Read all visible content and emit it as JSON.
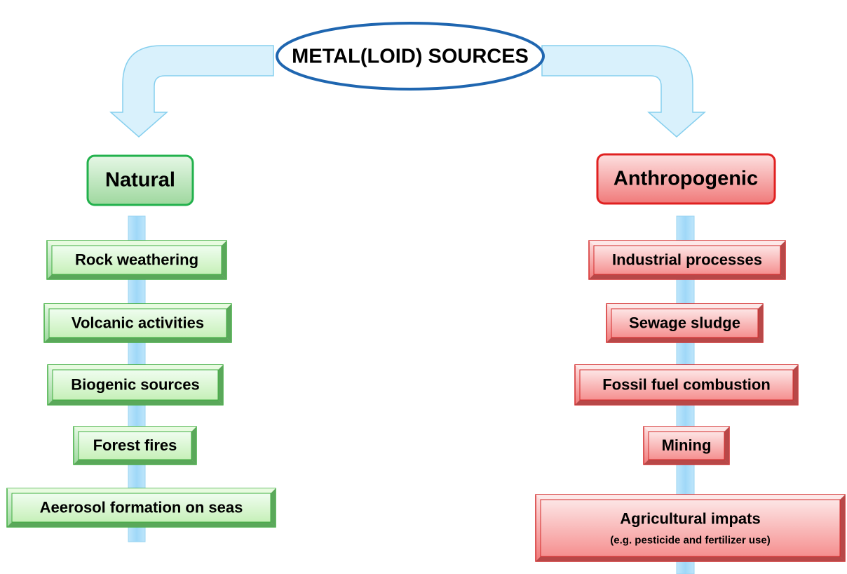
{
  "title": "METAL(LOID) SOURCES",
  "branches": [
    {
      "label": "Natural",
      "items": [
        {
          "label": "Rock weathering"
        },
        {
          "label": "Volcanic activities"
        },
        {
          "label": "Biogenic sources"
        },
        {
          "label": "Forest fires"
        },
        {
          "label": "Aeerosol formation on seas"
        }
      ]
    },
    {
      "label": "Anthropogenic",
      "items": [
        {
          "label": "Industrial processes"
        },
        {
          "label": "Sewage sludge"
        },
        {
          "label": "Fossil fuel combustion"
        },
        {
          "label": "Mining"
        },
        {
          "label": "Agricultural impats",
          "note": "(e.g. pesticide and fertilizer use)"
        }
      ]
    }
  ]
}
